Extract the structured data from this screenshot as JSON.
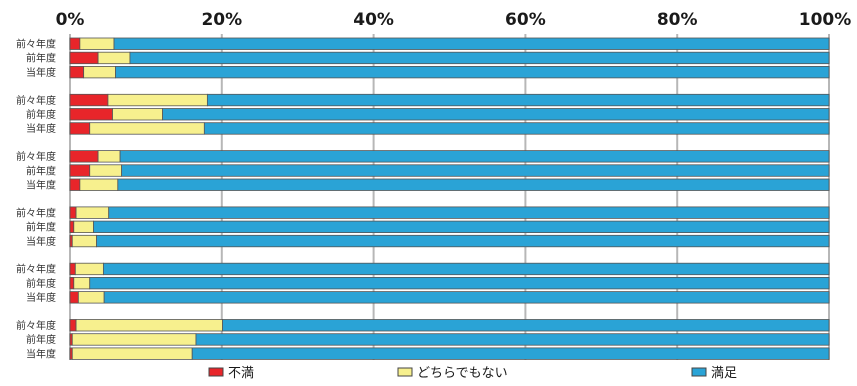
{
  "chart_data": {
    "type": "bar",
    "orientation": "horizontal",
    "stacked": "percent",
    "xlim": [
      0,
      100
    ],
    "x_ticks": [
      "0%",
      "20%",
      "40%",
      "60%",
      "80%",
      "100%"
    ],
    "categories": [
      "前々年度",
      "前年度",
      "当年度",
      "前々年度",
      "前年度",
      "当年度",
      "前々年度",
      "前年度",
      "当年度",
      "前々年度",
      "前年度",
      "当年度",
      "前々年度",
      "前年度",
      "当年度",
      "前々年度",
      "前年度",
      "当年度"
    ],
    "series": [
      {
        "name": "不満",
        "color": "#e8252a",
        "values": [
          1.3,
          3.7,
          1.8,
          5.0,
          5.6,
          2.6,
          3.7,
          2.6,
          1.3,
          0.8,
          0.5,
          0.3,
          0.7,
          0.5,
          1.1,
          0.8,
          0.3,
          0.3
        ]
      },
      {
        "name": "どちらでもない",
        "color": "#f7f08e",
        "values": [
          4.5,
          4.2,
          4.2,
          13.1,
          6.6,
          15.1,
          2.9,
          4.2,
          5.0,
          4.3,
          2.6,
          3.2,
          3.7,
          2.1,
          3.4,
          19.3,
          16.3,
          15.8
        ]
      },
      {
        "name": "満足",
        "color": "#2aa3d6",
        "values": [
          94.2,
          92.1,
          94.0,
          81.9,
          87.8,
          82.3,
          93.4,
          93.2,
          93.7,
          94.9,
          96.9,
          96.5,
          95.6,
          97.4,
          95.5,
          79.9,
          83.4,
          83.9
        ]
      }
    ],
    "grid": true,
    "legend_position": "bottom"
  }
}
